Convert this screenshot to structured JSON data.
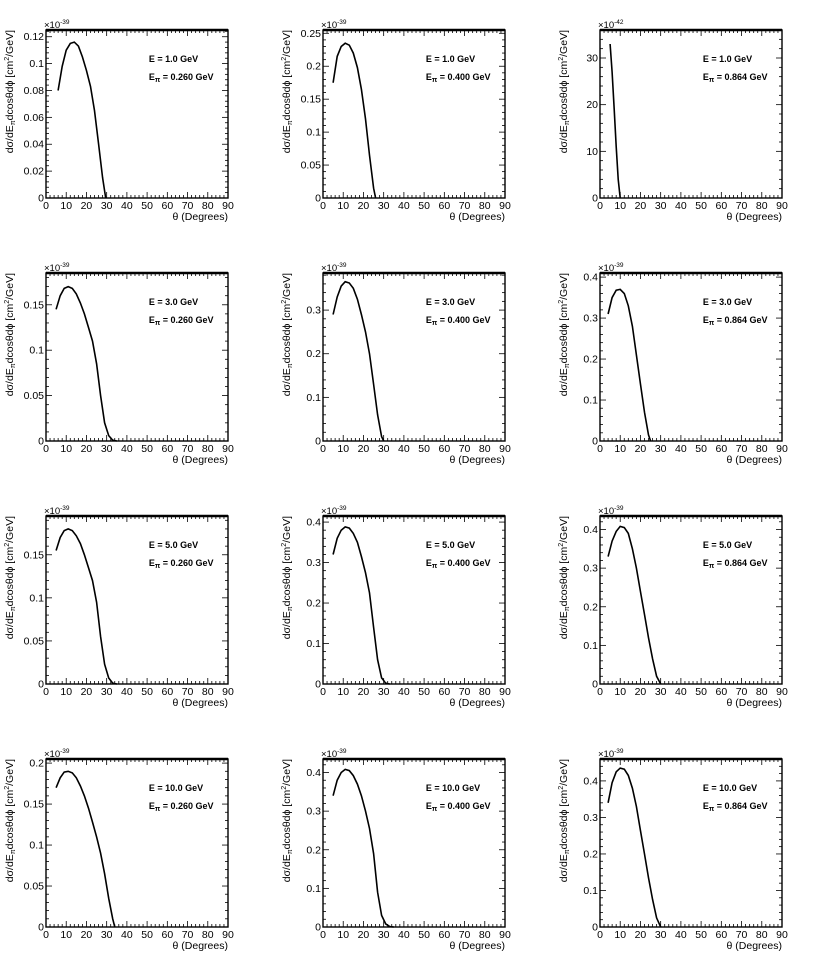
{
  "common": {
    "x_label": "θ (Degrees)",
    "y_label_prefix": "dσ/dE",
    "y_label_sub": "π",
    "y_label_mid": "dcosθdϕ [cm",
    "y_label_sup": "2",
    "y_label_suffix": "/GeV]",
    "x_ticks": [
      "0",
      "10",
      "20",
      "30",
      "40",
      "50",
      "60",
      "70",
      "80",
      "90"
    ]
  },
  "chart_data": [
    {
      "type": "line",
      "multiplier": "×10",
      "multiplier_exp": "-39",
      "ann_e": "E = 1.0 GeV",
      "ann_epi": "= 0.260 GeV",
      "ylim": [
        0,
        0.125
      ],
      "y_ticks": [
        0,
        0.02,
        0.04,
        0.06,
        0.08,
        0.1,
        0.12
      ],
      "y_tick_labels": [
        "0",
        "0.02",
        "0.04",
        "0.06",
        "0.08",
        "0.1",
        "0.12"
      ],
      "xlim": [
        0,
        90
      ],
      "x": [
        6,
        8,
        10,
        12,
        14,
        16,
        18,
        20,
        22,
        24,
        26,
        28,
        29.5
      ],
      "y": [
        0.08,
        0.098,
        0.11,
        0.115,
        0.116,
        0.113,
        0.105,
        0.095,
        0.083,
        0.065,
        0.04,
        0.015,
        0
      ]
    },
    {
      "type": "line",
      "multiplier": "×10",
      "multiplier_exp": "-39",
      "ann_e": "E = 1.0 GeV",
      "ann_epi": "= 0.400 GeV",
      "ylim": [
        0,
        0.255
      ],
      "y_ticks": [
        0,
        0.05,
        0.1,
        0.15,
        0.2,
        0.25
      ],
      "y_tick_labels": [
        "0",
        "0.05",
        "0.1",
        "0.15",
        "0.2",
        "0.25"
      ],
      "xlim": [
        0,
        90
      ],
      "x": [
        5,
        7,
        9,
        11,
        13,
        15,
        17,
        19,
        21,
        23,
        25,
        26
      ],
      "y": [
        0.175,
        0.215,
        0.23,
        0.235,
        0.232,
        0.22,
        0.198,
        0.165,
        0.12,
        0.065,
        0.015,
        0
      ]
    },
    {
      "type": "line",
      "multiplier": "×10",
      "multiplier_exp": "-42",
      "ann_e": "E = 1.0 GeV",
      "ann_epi": "= 0.864 GeV",
      "ylim": [
        0,
        36
      ],
      "y_ticks": [
        0,
        10,
        20,
        30
      ],
      "y_tick_labels": [
        "0",
        "10",
        "20",
        "30"
      ],
      "xlim": [
        0,
        90
      ],
      "x": [
        5,
        6,
        7,
        8,
        9,
        10
      ],
      "y": [
        33,
        27,
        19,
        11,
        4,
        0
      ]
    },
    {
      "type": "line",
      "multiplier": "×10",
      "multiplier_exp": "-39",
      "ann_e": "E = 3.0 GeV",
      "ann_epi": "= 0.260 GeV",
      "ylim": [
        0,
        0.185
      ],
      "y_ticks": [
        0,
        0.05,
        0.1,
        0.15
      ],
      "y_tick_labels": [
        "0",
        "0.05",
        "0.1",
        "0.15"
      ],
      "xlim": [
        0,
        90
      ],
      "x": [
        5,
        7,
        9,
        11,
        13,
        15,
        17,
        19,
        21,
        23,
        25,
        27,
        29,
        31,
        33,
        35
      ],
      "y": [
        0.145,
        0.16,
        0.168,
        0.17,
        0.168,
        0.162,
        0.152,
        0.14,
        0.125,
        0.11,
        0.085,
        0.05,
        0.02,
        0.006,
        0.001,
        0
      ]
    },
    {
      "type": "line",
      "multiplier": "×10",
      "multiplier_exp": "-39",
      "ann_e": "E = 3.0 GeV",
      "ann_epi": "= 0.400 GeV",
      "ylim": [
        0,
        0.385
      ],
      "y_ticks": [
        0,
        0.1,
        0.2,
        0.3
      ],
      "y_tick_labels": [
        "0",
        "0.1",
        "0.2",
        "0.3"
      ],
      "xlim": [
        0,
        90
      ],
      "x": [
        5,
        7,
        9,
        11,
        13,
        15,
        17,
        19,
        21,
        23,
        25,
        27,
        29,
        30
      ],
      "y": [
        0.29,
        0.33,
        0.355,
        0.365,
        0.362,
        0.35,
        0.325,
        0.29,
        0.25,
        0.2,
        0.13,
        0.06,
        0.01,
        0
      ]
    },
    {
      "type": "line",
      "multiplier": "×10",
      "multiplier_exp": "-39",
      "ann_e": "E = 3.0 GeV",
      "ann_epi": "= 0.864 GeV",
      "ylim": [
        0,
        0.41
      ],
      "y_ticks": [
        0,
        0.1,
        0.2,
        0.3,
        0.4
      ],
      "y_tick_labels": [
        "0",
        "0.1",
        "0.2",
        "0.3",
        "0.4"
      ],
      "xlim": [
        0,
        90
      ],
      "x": [
        4,
        6,
        8,
        10,
        12,
        14,
        16,
        18,
        20,
        22,
        24,
        25
      ],
      "y": [
        0.31,
        0.35,
        0.368,
        0.37,
        0.36,
        0.33,
        0.28,
        0.21,
        0.14,
        0.07,
        0.015,
        0
      ]
    },
    {
      "type": "line",
      "multiplier": "×10",
      "multiplier_exp": "-39",
      "ann_e": "E = 5.0 GeV",
      "ann_epi": "= 0.260 GeV",
      "ylim": [
        0,
        0.195
      ],
      "y_ticks": [
        0,
        0.05,
        0.1,
        0.15
      ],
      "y_tick_labels": [
        "0",
        "0.05",
        "0.1",
        "0.15"
      ],
      "xlim": [
        0,
        90
      ],
      "x": [
        5,
        7,
        9,
        11,
        13,
        15,
        17,
        19,
        21,
        23,
        25,
        27,
        29,
        31,
        33,
        35
      ],
      "y": [
        0.155,
        0.17,
        0.178,
        0.18,
        0.178,
        0.172,
        0.163,
        0.15,
        0.135,
        0.12,
        0.095,
        0.055,
        0.023,
        0.007,
        0.001,
        0
      ]
    },
    {
      "type": "line",
      "multiplier": "×10",
      "multiplier_exp": "-39",
      "ann_e": "E = 5.0 GeV",
      "ann_epi": "= 0.400 GeV",
      "ylim": [
        0,
        0.415
      ],
      "y_ticks": [
        0,
        0.1,
        0.2,
        0.3,
        0.4
      ],
      "y_tick_labels": [
        "0",
        "0.1",
        "0.2",
        "0.3",
        "0.4"
      ],
      "xlim": [
        0,
        90
      ],
      "x": [
        5,
        7,
        9,
        11,
        13,
        15,
        17,
        19,
        21,
        23,
        25,
        27,
        29,
        31,
        33
      ],
      "y": [
        0.32,
        0.36,
        0.38,
        0.388,
        0.385,
        0.372,
        0.35,
        0.315,
        0.275,
        0.225,
        0.14,
        0.06,
        0.015,
        0.002,
        0
      ]
    },
    {
      "type": "line",
      "multiplier": "×10",
      "multiplier_exp": "-39",
      "ann_e": "E = 5.0 GeV",
      "ann_epi": "= 0.864 GeV",
      "ylim": [
        0,
        0.435
      ],
      "y_ticks": [
        0,
        0.1,
        0.2,
        0.3,
        0.4
      ],
      "y_tick_labels": [
        "0",
        "0.1",
        "0.2",
        "0.3",
        "0.4"
      ],
      "xlim": [
        0,
        90
      ],
      "x": [
        4,
        6,
        8,
        10,
        12,
        14,
        16,
        18,
        20,
        22,
        24,
        26,
        28,
        30
      ],
      "y": [
        0.33,
        0.37,
        0.395,
        0.408,
        0.405,
        0.39,
        0.35,
        0.3,
        0.24,
        0.18,
        0.12,
        0.065,
        0.02,
        0
      ]
    },
    {
      "type": "line",
      "multiplier": "×10",
      "multiplier_exp": "-39",
      "ann_e": "E = 10.0 GeV",
      "ann_epi": "= 0.260 GeV",
      "ylim": [
        0,
        0.205
      ],
      "y_ticks": [
        0,
        0.05,
        0.1,
        0.15,
        0.2
      ],
      "y_tick_labels": [
        "0",
        "0.05",
        "0.1",
        "0.15",
        "0.2"
      ],
      "xlim": [
        0,
        90
      ],
      "x": [
        5,
        7,
        9,
        11,
        13,
        15,
        17,
        19,
        21,
        23,
        25,
        27,
        29,
        31,
        33,
        34
      ],
      "y": [
        0.17,
        0.182,
        0.189,
        0.19,
        0.188,
        0.182,
        0.172,
        0.16,
        0.145,
        0.128,
        0.11,
        0.09,
        0.065,
        0.035,
        0.01,
        0
      ]
    },
    {
      "type": "line",
      "multiplier": "×10",
      "multiplier_exp": "-39",
      "ann_e": "E = 10.0 GeV",
      "ann_epi": "= 0.400 GeV",
      "ylim": [
        0,
        0.435
      ],
      "y_ticks": [
        0,
        0.1,
        0.2,
        0.3,
        0.4
      ],
      "y_tick_labels": [
        "0",
        "0.1",
        "0.2",
        "0.3",
        "0.4"
      ],
      "xlim": [
        0,
        90
      ],
      "x": [
        5,
        7,
        9,
        11,
        13,
        15,
        17,
        19,
        21,
        23,
        25,
        27,
        29,
        31,
        33,
        35
      ],
      "y": [
        0.34,
        0.38,
        0.4,
        0.408,
        0.405,
        0.392,
        0.37,
        0.34,
        0.3,
        0.255,
        0.19,
        0.09,
        0.03,
        0.008,
        0.001,
        0
      ]
    },
    {
      "type": "line",
      "multiplier": "×10",
      "multiplier_exp": "-39",
      "ann_e": "E = 10.0 GeV",
      "ann_epi": "= 0.864 GeV",
      "ylim": [
        0,
        0.46
      ],
      "y_ticks": [
        0,
        0.1,
        0.2,
        0.3,
        0.4
      ],
      "y_tick_labels": [
        "0",
        "0.1",
        "0.2",
        "0.3",
        "0.4"
      ],
      "xlim": [
        0,
        90
      ],
      "x": [
        4,
        6,
        8,
        10,
        12,
        14,
        16,
        18,
        20,
        22,
        24,
        26,
        28,
        30
      ],
      "y": [
        0.34,
        0.395,
        0.425,
        0.435,
        0.432,
        0.415,
        0.38,
        0.33,
        0.265,
        0.2,
        0.135,
        0.075,
        0.025,
        0
      ]
    }
  ]
}
